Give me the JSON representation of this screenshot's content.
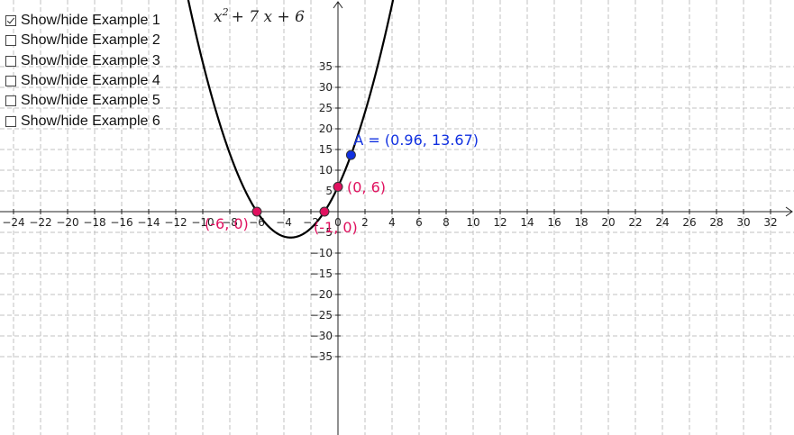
{
  "toggles": [
    {
      "label": "Show/hide Example 1",
      "checked": true
    },
    {
      "label": "Show/hide Example 2",
      "checked": false
    },
    {
      "label": "Show/hide Example 3",
      "checked": false
    },
    {
      "label": "Show/hide Example 4",
      "checked": false
    },
    {
      "label": "Show/hide Example 5",
      "checked": false
    },
    {
      "label": "Show/hide Example 6",
      "checked": false
    }
  ],
  "graph": {
    "formula": {
      "base": "x",
      "exp": "2",
      "rest": "+ 7 x + 6"
    },
    "curve": {
      "a": 1,
      "b": 7,
      "c": 6,
      "color": "#000000"
    },
    "x_ticks": [
      -24,
      -22,
      -20,
      -18,
      -16,
      -14,
      -12,
      -10,
      -8,
      -6,
      -4,
      -2,
      0,
      2,
      4,
      6,
      8,
      10,
      12,
      14,
      16,
      18,
      20,
      22,
      24,
      26,
      28,
      30,
      32
    ],
    "y_ticks": [
      -35,
      -30,
      -25,
      -20,
      -15,
      -10,
      -5,
      5,
      10,
      15,
      20,
      25,
      30,
      35
    ],
    "x_range": [
      -25,
      33.7
    ],
    "y_range": [
      -39,
      39
    ],
    "grid": true,
    "points": [
      {
        "x": -6,
        "y": 0,
        "label": "(-6, 0)",
        "color": "#e0115f"
      },
      {
        "x": -1,
        "y": 0,
        "label": "(-1, 0)",
        "color": "#e0115f"
      },
      {
        "x": 0,
        "y": 6,
        "label": "(0, 6)",
        "color": "#e0115f"
      },
      {
        "x": 0.96,
        "y": 13.67,
        "label": "A = (0.96, 13.67)",
        "color": "#1030e0"
      }
    ]
  }
}
